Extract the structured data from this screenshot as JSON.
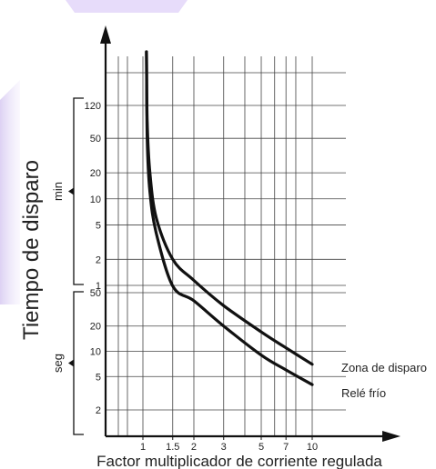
{
  "chart_data": {
    "type": "line",
    "title": "",
    "xlabel": "Factor multiplicador de corriente regulada",
    "ylabel": "Tiempo de disparo",
    "x_scale": "log",
    "x_ticks": [
      {
        "value": 1,
        "label": "1"
      },
      {
        "value": 1.5,
        "label": "1.5"
      },
      {
        "value": 2,
        "label": "2"
      },
      {
        "value": 3,
        "label": "3"
      },
      {
        "value": 5,
        "label": "5"
      },
      {
        "value": 7,
        "label": "7"
      },
      {
        "value": 10,
        "label": "10"
      }
    ],
    "bands": [
      {
        "label": "min",
        "ticks": [
          {
            "value": 120,
            "label": "120"
          },
          {
            "value": 50,
            "label": "50"
          },
          {
            "value": 20,
            "label": "20"
          },
          {
            "value": 10,
            "label": "10"
          },
          {
            "value": 5,
            "label": "5"
          },
          {
            "value": 2,
            "label": "2"
          },
          {
            "value": 1,
            "label": "1"
          }
        ]
      },
      {
        "label": "seg",
        "ticks": [
          {
            "value": 50,
            "label": "50"
          },
          {
            "value": 20,
            "label": "20"
          },
          {
            "value": 10,
            "label": "10"
          },
          {
            "value": 5,
            "label": "5"
          },
          {
            "value": 2,
            "label": "2"
          }
        ]
      }
    ],
    "series": [
      {
        "name": "Zona de disparo",
        "points": [
          {
            "x": 1.05,
            "y": "500 min"
          },
          {
            "x": 1.06,
            "y": "80 min"
          },
          {
            "x": 1.1,
            "y": "20 min"
          },
          {
            "x": 1.2,
            "y": "6 min"
          },
          {
            "x": 1.5,
            "y": "2 min"
          },
          {
            "x": 2,
            "y": "70 seg"
          },
          {
            "x": 3,
            "y": "35 seg"
          },
          {
            "x": 5,
            "y": "17 seg"
          },
          {
            "x": 7,
            "y": "11 seg"
          },
          {
            "x": 10,
            "y": "7 seg"
          }
        ]
      },
      {
        "name": "Relé frío",
        "points": [
          {
            "x": 1.05,
            "y": "500 min"
          },
          {
            "x": 1.06,
            "y": "50 min"
          },
          {
            "x": 1.1,
            "y": "12 min"
          },
          {
            "x": 1.2,
            "y": "4 min"
          },
          {
            "x": 1.5,
            "y": "60 seg"
          },
          {
            "x": 2,
            "y": "40 seg"
          },
          {
            "x": 3,
            "y": "20 seg"
          },
          {
            "x": 5,
            "y": "9 seg"
          },
          {
            "x": 7,
            "y": "6 seg"
          },
          {
            "x": 10,
            "y": "4 seg"
          }
        ]
      }
    ],
    "grid": true,
    "legend": "right, next to the curve ends"
  }
}
